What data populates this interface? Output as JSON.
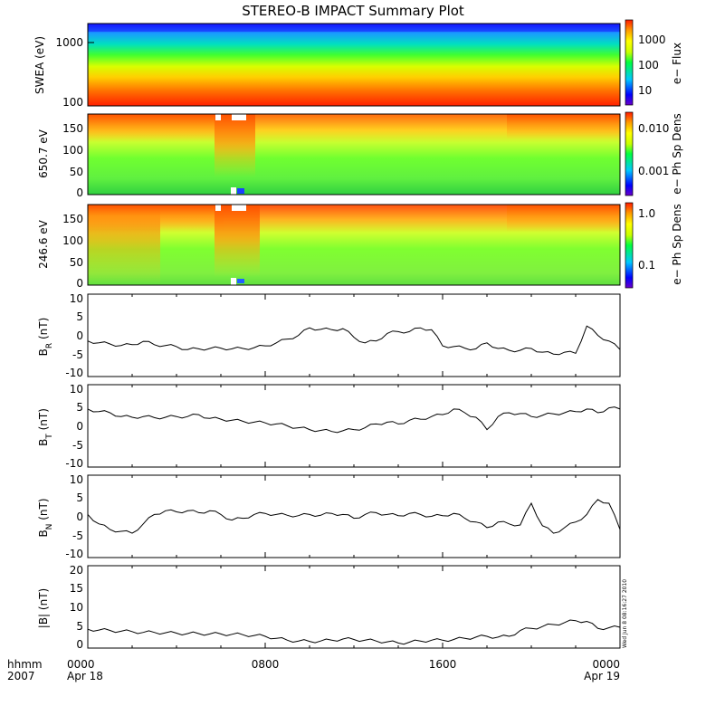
{
  "title": "STEREO-B IMPACT Summary Plot",
  "stamp": "Wed Jun  8 08:16:27 2010",
  "time_axis": {
    "corner_top": "hhmm",
    "corner_bottom": "2007",
    "ticks": [
      {
        "hour": 0,
        "label": "0000",
        "sub": "Apr 18"
      },
      {
        "hour": 8,
        "label": "0800",
        "sub": ""
      },
      {
        "hour": 16,
        "label": "1600",
        "sub": ""
      },
      {
        "hour": 24,
        "label": "0000",
        "sub": "Apr 19"
      }
    ]
  },
  "panels": {
    "swea": {
      "ylabel": "SWEA (eV)",
      "yticks": [
        "1000",
        "100"
      ],
      "colorbar_label": "e− Flux",
      "colorbar_ticks": [
        "1000",
        "100",
        "10"
      ]
    },
    "pad650": {
      "ylabel": "650.7 eV",
      "yticks": [
        "150",
        "100",
        "50",
        "0"
      ],
      "colorbar_label": "e− Ph Sp Dens",
      "colorbar_ticks": [
        "0.010",
        "0.001"
      ]
    },
    "pad246": {
      "ylabel": "246.6 eV",
      "yticks": [
        "150",
        "100",
        "50",
        "0"
      ],
      "colorbar_label": "e− Ph Sp Dens",
      "colorbar_ticks": [
        "1.0",
        "0.1"
      ]
    },
    "br": {
      "ylabel_main": "B",
      "ylabel_sub": "R",
      "ylabel_unit": " (nT)",
      "yticks": [
        "10",
        "5",
        "0",
        "-5",
        "-10"
      ]
    },
    "bt": {
      "ylabel_main": "B",
      "ylabel_sub": "T",
      "ylabel_unit": " (nT)",
      "yticks": [
        "10",
        "5",
        "0",
        "-5",
        "-10"
      ]
    },
    "bn": {
      "ylabel_main": "B",
      "ylabel_sub": "N",
      "ylabel_unit": " (nT)",
      "yticks": [
        "10",
        "5",
        "0",
        "-5",
        "-10"
      ]
    },
    "bmag": {
      "ylabel": "|B| (nT)",
      "yticks": [
        "20",
        "15",
        "10",
        "5",
        "0"
      ]
    }
  },
  "chart_data": [
    {
      "type": "heatmap",
      "name": "SWEA",
      "x_unit": "hours since 2007-04-18 0000",
      "xlim": [
        0,
        24
      ],
      "y_scale": "log",
      "ylim_eV": [
        100,
        2000
      ],
      "color_scale": "log",
      "color_range": [
        3,
        3000
      ]
    },
    {
      "type": "heatmap",
      "name": "650.7 eV",
      "x_unit": "hours",
      "xlim": [
        0,
        24
      ],
      "ylim_deg": [
        0,
        180
      ],
      "color_scale": "log",
      "color_range": [
        0.0003,
        0.02
      ]
    },
    {
      "type": "heatmap",
      "name": "246.6 eV",
      "x_unit": "hours",
      "xlim": [
        0,
        24
      ],
      "ylim_deg": [
        0,
        180
      ],
      "color_scale": "log",
      "color_range": [
        0.03,
        1.5
      ]
    },
    {
      "type": "line",
      "name": "BR",
      "ylim": [
        -11,
        11
      ],
      "x": [
        0,
        0.5,
        1,
        1.5,
        2,
        2.5,
        3,
        3.5,
        4,
        4.5,
        5,
        5.5,
        6,
        6.5,
        7,
        7.5,
        8,
        8.5,
        9,
        9.5,
        10,
        10.5,
        11,
        11.5,
        12,
        12.5,
        13,
        13.5,
        14,
        14.5,
        15,
        15.5,
        16,
        16.5,
        17,
        17.5,
        18,
        18.5,
        19,
        19.5,
        20,
        20.5,
        21,
        21.5,
        22,
        22.5,
        23,
        23.5,
        24
      ],
      "y": [
        -1.5,
        -2,
        -2.3,
        -2.7,
        -2.5,
        -1.6,
        -2.5,
        -2.7,
        -3,
        -3.8,
        -3.6,
        -3.5,
        -3.4,
        -3.6,
        -3.5,
        -3.3,
        -2.8,
        -2,
        -1,
        0,
        2,
        1.6,
        1.5,
        1.8,
        -0.5,
        -2,
        -1.5,
        0.5,
        1,
        1,
        2,
        1.5,
        -2.8,
        -3,
        -3.4,
        -3.6,
        -2,
        -3.5,
        -4,
        -4,
        -3.5,
        -4.5,
        -5,
        -4.5,
        -4.8,
        2.5,
        0,
        -1.5,
        -3.8
      ]
    },
    {
      "type": "line",
      "name": "BT",
      "ylim": [
        -11,
        11
      ],
      "x": [
        0,
        0.5,
        1,
        1.5,
        2,
        2.5,
        3,
        3.5,
        4,
        4.5,
        5,
        5.5,
        6,
        6.5,
        7,
        7.5,
        8,
        8.5,
        9,
        9.5,
        10,
        10.5,
        11,
        11.5,
        12,
        12.5,
        13,
        13.5,
        14,
        14.5,
        15,
        15.5,
        16,
        16.5,
        17,
        17.5,
        18,
        18.5,
        19,
        19.5,
        20,
        20.5,
        21,
        21.5,
        22,
        22.5,
        23,
        23.5,
        24
      ],
      "y": [
        4.5,
        3.8,
        3.5,
        2.5,
        2.3,
        2.5,
        2.2,
        2.3,
        2.5,
        2.5,
        3,
        2,
        1.8,
        1.5,
        1.2,
        1,
        0.8,
        0.5,
        0,
        -0.5,
        -1,
        -1.2,
        -1.5,
        -1.3,
        -1,
        -0.5,
        0.5,
        1,
        0.5,
        1.5,
        1.8,
        2.5,
        3,
        4.5,
        3.5,
        2.3,
        -1,
        2.5,
        3.5,
        3.3,
        2.5,
        2.8,
        3.2,
        3.5,
        3.8,
        4.5,
        3.5,
        4.8,
        4.5
      ]
    },
    {
      "type": "line",
      "name": "BN",
      "ylim": [
        -11,
        11
      ],
      "x": [
        0,
        0.5,
        1,
        1.5,
        2,
        2.5,
        3,
        3.5,
        4,
        4.5,
        5,
        5.5,
        6,
        6.5,
        7,
        7.5,
        8,
        8.5,
        9,
        9.5,
        10,
        10.5,
        11,
        11.5,
        12,
        12.5,
        13,
        13.5,
        14,
        14.5,
        15,
        15.5,
        16,
        16.5,
        17,
        17.5,
        18,
        18.5,
        19,
        19.5,
        20,
        20.5,
        21,
        21.5,
        22,
        22.5,
        23,
        23.5,
        24
      ],
      "y": [
        0.5,
        -2,
        -3.5,
        -4,
        -4.5,
        -2,
        0.5,
        1.5,
        1.2,
        1.5,
        1,
        1.5,
        0.5,
        -1,
        -0.5,
        0.5,
        0.8,
        0.5,
        0.3,
        0.2,
        0.5,
        0.3,
        0.8,
        0.5,
        -0.5,
        0.5,
        1,
        0.5,
        0.2,
        0.8,
        0.5,
        0,
        0.2,
        0.8,
        -0.5,
        -1.5,
        -3,
        -1.5,
        -2,
        -2.3,
        3.5,
        -2.5,
        -4.5,
        -3,
        -1.5,
        0.5,
        4.5,
        3.5,
        -3.5
      ]
    },
    {
      "type": "line",
      "name": "|B|",
      "ylim": [
        0,
        21
      ],
      "x": [
        0,
        0.5,
        1,
        1.5,
        2,
        2.5,
        3,
        3.5,
        4,
        4.5,
        5,
        5.5,
        6,
        6.5,
        7,
        7.5,
        8,
        8.5,
        9,
        9.5,
        10,
        10.5,
        11,
        11.5,
        12,
        12.5,
        13,
        13.5,
        14,
        14.5,
        15,
        15.5,
        16,
        16.5,
        17,
        17.5,
        18,
        18.5,
        19,
        19.5,
        20,
        20.5,
        21,
        21.5,
        22,
        22.5,
        23,
        23.5,
        24
      ],
      "y": [
        4.8,
        4.6,
        4.5,
        4.3,
        4.2,
        4,
        4,
        3.9,
        3.8,
        3.7,
        3.7,
        3.6,
        3.6,
        3.5,
        3.4,
        3.2,
        3,
        2.5,
        2,
        1.8,
        1.7,
        1.8,
        2,
        2.3,
        2.2,
        2,
        1.8,
        1.6,
        1.3,
        1.5,
        1.8,
        2,
        2,
        2.2,
        2.5,
        2.8,
        3,
        2.8,
        3,
        4.5,
        5,
        5.5,
        6,
        6.5,
        7,
        6.8,
        5,
        5.2,
        5.3
      ]
    }
  ]
}
